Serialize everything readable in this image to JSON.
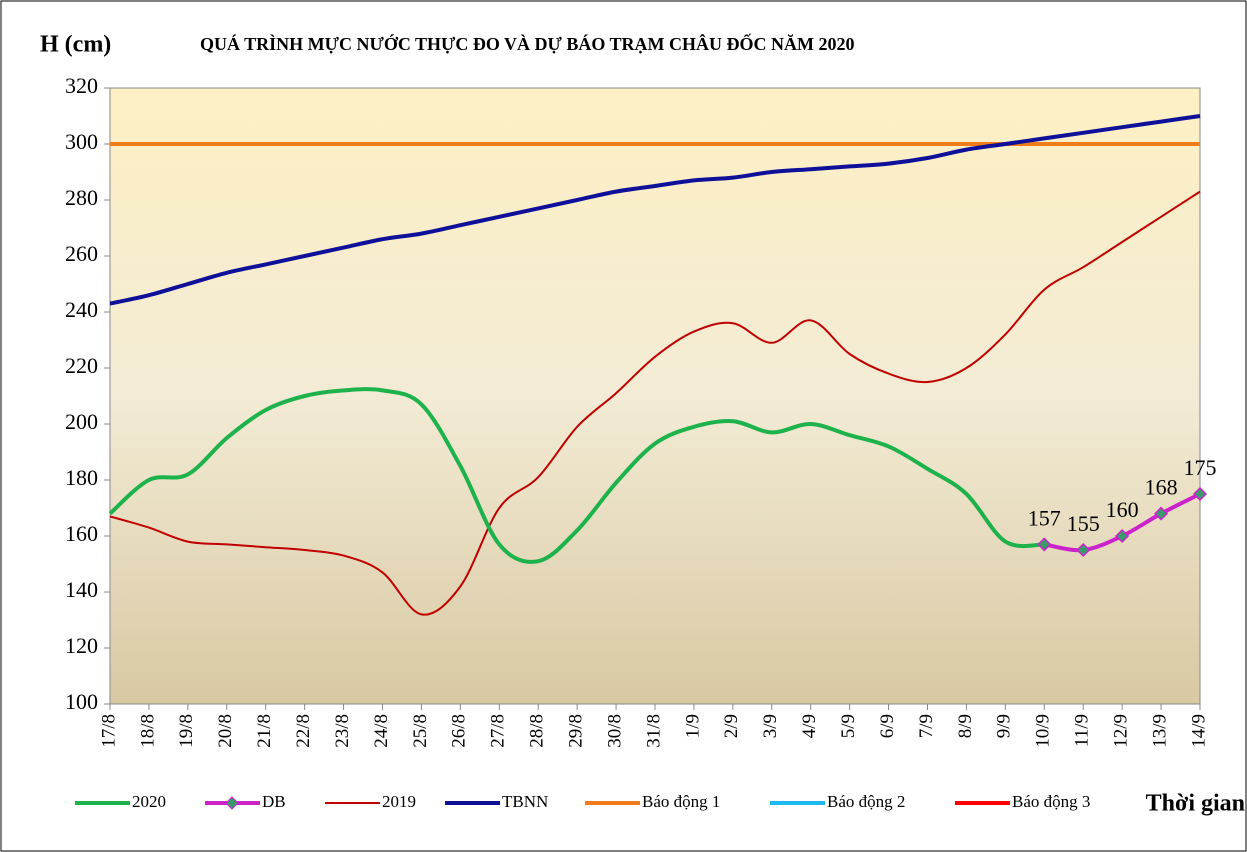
{
  "chart_data": {
    "type": "line",
    "title": "QUÁ TRÌNH MỰC NƯỚC THỰC ĐO VÀ DỰ BÁO TRẠM CHÂU ĐỐC NĂM  2020",
    "y_label": "H (cm)",
    "x_label": "Thời gian",
    "categories": [
      "17/8",
      "18/8",
      "19/8",
      "20/8",
      "21/8",
      "22/8",
      "23/8",
      "24/8",
      "25/8",
      "26/8",
      "27/8",
      "28/8",
      "29/8",
      "30/8",
      "31/8",
      "1/9",
      "2/9",
      "3/9",
      "4/9",
      "5/9",
      "6/9",
      "7/9",
      "8/9",
      "9/9",
      "10/9",
      "11/9",
      "12/9",
      "13/9",
      "14/9"
    ],
    "ylim": [
      100,
      320
    ],
    "yticks": [
      100,
      120,
      140,
      160,
      180,
      200,
      220,
      240,
      260,
      280,
      300,
      320
    ],
    "series": [
      {
        "name": "2020",
        "color": "#1db24b",
        "width": 4,
        "values": [
          168,
          180,
          182,
          195,
          205,
          210,
          212,
          212,
          207,
          185,
          157,
          151,
          162,
          179,
          193,
          199,
          201,
          197,
          200,
          196,
          192,
          184,
          175,
          158,
          157,
          null,
          null,
          null,
          null
        ]
      },
      {
        "name": "DB",
        "color": "#cc22cc",
        "width": 4,
        "markers": true,
        "values": [
          null,
          null,
          null,
          null,
          null,
          null,
          null,
          null,
          null,
          null,
          null,
          null,
          null,
          null,
          null,
          null,
          null,
          null,
          null,
          null,
          null,
          null,
          null,
          null,
          157,
          155,
          160,
          168,
          175
        ]
      },
      {
        "name": "2019",
        "color": "#c00000",
        "width": 2,
        "values": [
          167,
          163,
          158,
          157,
          156,
          155,
          153,
          147,
          132,
          142,
          170,
          181,
          199,
          211,
          224,
          233,
          236,
          229,
          237,
          225,
          218,
          215,
          220,
          232,
          248,
          256,
          265,
          274,
          283
        ]
      },
      {
        "name": "TBNN",
        "color": "#0f109a",
        "width": 4,
        "values": [
          243,
          246,
          250,
          254,
          257,
          260,
          263,
          266,
          268,
          271,
          274,
          277,
          280,
          283,
          285,
          287,
          288,
          290,
          291,
          292,
          293,
          295,
          298,
          300,
          302,
          304,
          306,
          308,
          310
        ]
      },
      {
        "name": "Báo động 1",
        "color": "#f07c1a",
        "width": 4,
        "values": [
          300,
          300,
          300,
          300,
          300,
          300,
          300,
          300,
          300,
          300,
          300,
          300,
          300,
          300,
          300,
          300,
          300,
          300,
          300,
          300,
          300,
          300,
          300,
          300,
          300,
          300,
          300,
          300,
          300
        ]
      },
      {
        "name": "Báo động 2",
        "color": "#1cb8f0",
        "width": 4
      },
      {
        "name": "Báo động 3",
        "color": "#ff0000",
        "width": 4
      }
    ]
  }
}
